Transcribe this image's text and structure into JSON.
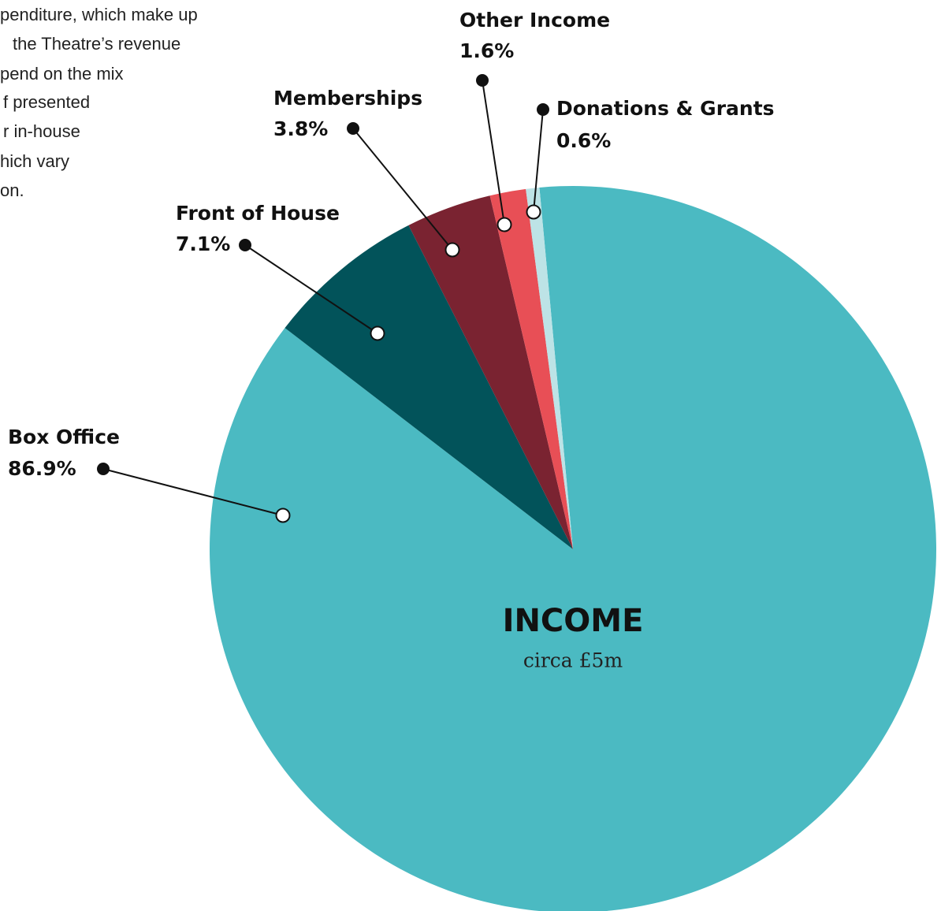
{
  "chart_data": {
    "type": "pie",
    "title": "INCOME",
    "subtitle": "circa £5m",
    "annotations": [
      "penditure, which make up",
      "the Theatre’s revenue",
      "pend on the mix",
      "f presented",
      "r in-house",
      "hich vary",
      "on."
    ],
    "categories": [
      "Box Office",
      "Front of House",
      "Memberships",
      "Other Income",
      "Donations & Grants"
    ],
    "values": [
      86.9,
      7.1,
      3.8,
      1.6,
      0.6
    ],
    "value_labels": [
      "86.9%",
      "7.1%",
      "3.8%",
      "1.6%",
      "0.6%"
    ],
    "colors": [
      "#4bbac2",
      "#02535a",
      "#7a2331",
      "#e84f56",
      "#bde3e6"
    ]
  }
}
